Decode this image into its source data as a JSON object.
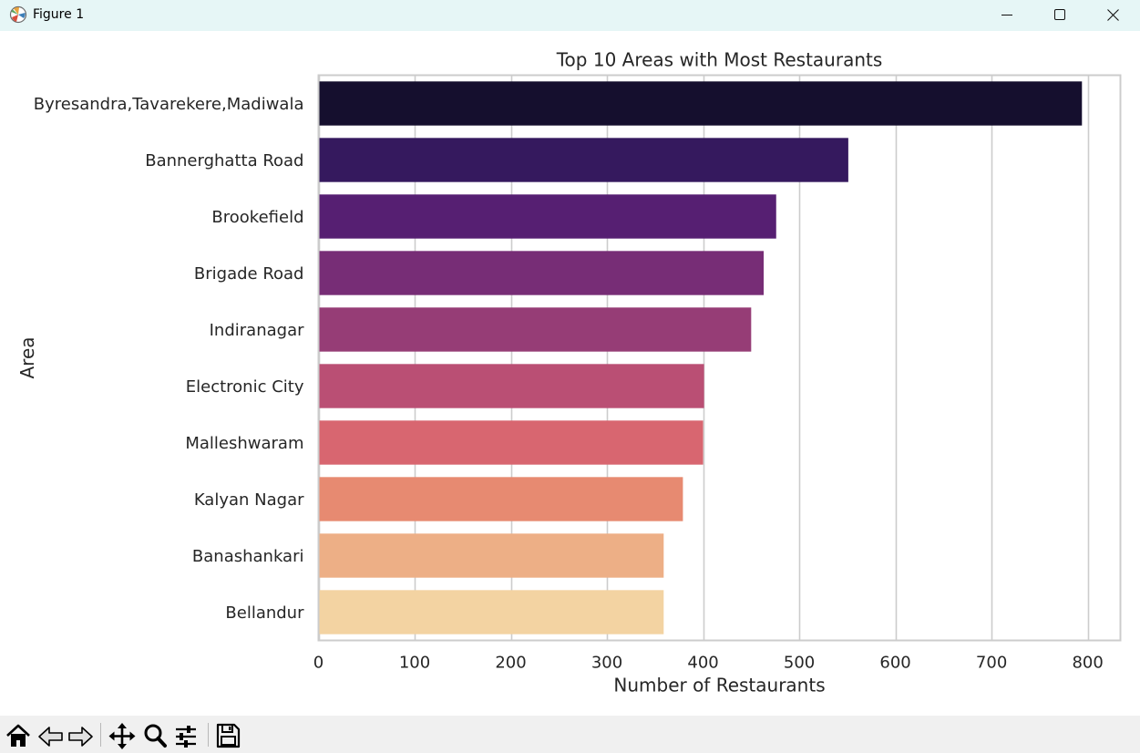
{
  "window": {
    "title": "Figure 1",
    "icons": {
      "app": "matplotlib-icon",
      "minimize": "minimize-icon",
      "maximize": "maximize-icon",
      "close": "close-icon"
    }
  },
  "toolbar": {
    "buttons": [
      {
        "name": "home-icon"
      },
      {
        "name": "back-icon"
      },
      {
        "name": "forward-icon"
      },
      {
        "name": "pan-icon"
      },
      {
        "name": "zoom-icon"
      },
      {
        "name": "configure-subplots-icon"
      },
      {
        "name": "save-icon"
      }
    ]
  },
  "chart_data": {
    "type": "bar",
    "orientation": "horizontal",
    "title": "Top 10 Areas with Most Restaurants",
    "xlabel": "Number of Restaurants",
    "ylabel": "Area",
    "categories": [
      "Byresandra,Tavarekere,Madiwala",
      "Bannerghatta Road",
      "Brookefield",
      "Brigade Road",
      "Indiranagar",
      "Electronic City",
      "Malleshwaram",
      "Kalyan Nagar",
      "Banashankari",
      "Bellandur"
    ],
    "values": [
      794,
      551,
      476,
      463,
      450,
      401,
      400,
      379,
      359,
      359
    ],
    "colors": [
      "#150f2e",
      "#35195e",
      "#561f72",
      "#772d76",
      "#963d76",
      "#ba4f74",
      "#d86670",
      "#e78a71",
      "#edaf86",
      "#f3d3a2"
    ],
    "xlim": [
      0,
      834
    ],
    "xticks": [
      0,
      100,
      200,
      300,
      400,
      500,
      600,
      700,
      800
    ],
    "xtick_labels": [
      "0",
      "100",
      "200",
      "300",
      "400",
      "500",
      "600",
      "700",
      "800"
    ],
    "grid": "vertical",
    "grid_color": "#cccccc",
    "spine_color": "#cccccc"
  }
}
